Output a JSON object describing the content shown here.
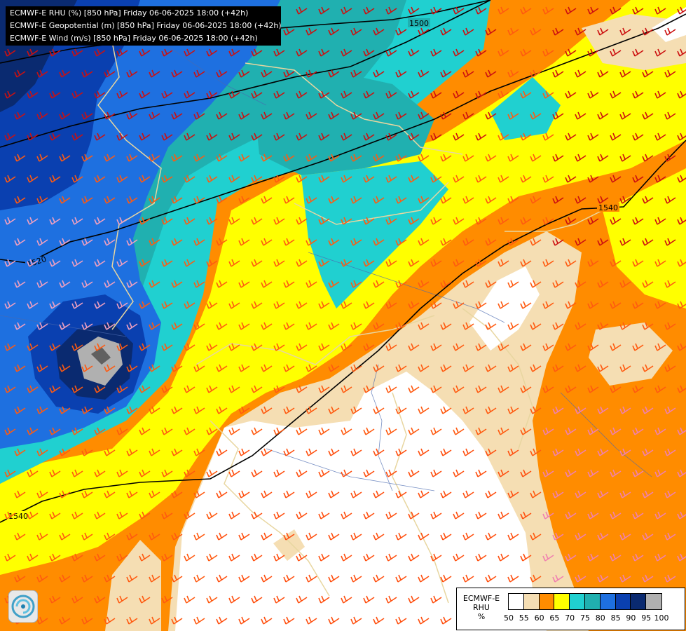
{
  "titles": [
    "ECMWF-E RHU (%) [850 hPa] Friday 06-06-2025 18:00 (+42h)",
    "ECMWF-E Geopotential (m) [850 hPa] Friday 06-06-2025 18:00 (+42h)",
    "ECMWF-E Wind (m/s) [850 hPa] Friday 06-06-2025 18:00 (+42h)"
  ],
  "contour_labels": {
    "top": "1500",
    "upper_right": "1540",
    "left": "1520",
    "lower_left": "1540"
  },
  "legend": {
    "model": "ECMWF-E",
    "variable": "RHU",
    "unit": "%",
    "levels": [
      "50",
      "55",
      "60",
      "65",
      "70",
      "75",
      "80",
      "85",
      "90",
      "95",
      "100"
    ],
    "colors": [
      "#ffffff",
      "#f5deb3",
      "#ff8c00",
      "#ffff00",
      "#20d0d0",
      "#20b0b0",
      "#1e70e0",
      "#0a40b0",
      "#0a2a70",
      "#b0b0b0",
      "#606060"
    ]
  },
  "icons": {
    "logo": "swirl-logo-icon"
  }
}
